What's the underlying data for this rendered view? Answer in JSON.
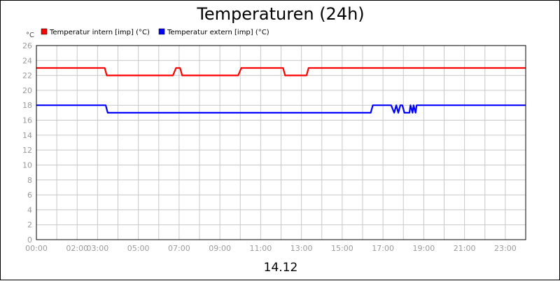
{
  "chart_data": {
    "type": "line",
    "title": "Temperaturen (24h)",
    "unit": "°C",
    "date_label": "14.12",
    "xlim": [
      0,
      24
    ],
    "ylim": [
      0,
      26
    ],
    "y_ticks": [
      0,
      2,
      4,
      6,
      8,
      10,
      12,
      14,
      16,
      18,
      20,
      22,
      24,
      26
    ],
    "x_ticks": [
      {
        "label": "00:00",
        "value": 0
      },
      {
        "label": "02:00",
        "value": 2
      },
      {
        "label": "03:00",
        "value": 3
      },
      {
        "label": "05:00",
        "value": 5
      },
      {
        "label": "07:00",
        "value": 7
      },
      {
        "label": "09:00",
        "value": 9
      },
      {
        "label": "11:00",
        "value": 11
      },
      {
        "label": "13:00",
        "value": 13
      },
      {
        "label": "15:00",
        "value": 15
      },
      {
        "label": "17:00",
        "value": 17
      },
      {
        "label": "19:00",
        "value": 19
      },
      {
        "label": "21:00",
        "value": 21
      },
      {
        "label": "23:00",
        "value": 23
      }
    ],
    "grid": true,
    "legend_position": "top-left",
    "series": [
      {
        "name": "Temperatur intern [imp] (°C)",
        "color": "#ff0000",
        "points": [
          [
            0,
            23
          ],
          [
            3.35,
            23
          ],
          [
            3.45,
            22
          ],
          [
            6.7,
            22
          ],
          [
            6.85,
            23
          ],
          [
            7.05,
            23
          ],
          [
            7.15,
            22
          ],
          [
            9.9,
            22
          ],
          [
            10.05,
            23
          ],
          [
            12.1,
            23
          ],
          [
            12.2,
            22
          ],
          [
            13.25,
            22
          ],
          [
            13.35,
            23
          ],
          [
            24,
            23
          ]
        ]
      },
      {
        "name": "Temperatur extern [imp] (°C)",
        "color": "#0000ff",
        "points": [
          [
            0,
            18
          ],
          [
            3.4,
            18
          ],
          [
            3.5,
            17
          ],
          [
            16.4,
            17
          ],
          [
            16.5,
            18
          ],
          [
            17.4,
            18
          ],
          [
            17.55,
            17
          ],
          [
            17.65,
            18
          ],
          [
            17.75,
            17
          ],
          [
            17.85,
            18
          ],
          [
            17.95,
            18
          ],
          [
            18.05,
            17
          ],
          [
            18.3,
            17
          ],
          [
            18.35,
            18
          ],
          [
            18.45,
            17
          ],
          [
            18.5,
            18
          ],
          [
            18.6,
            17
          ],
          [
            18.65,
            18
          ],
          [
            24,
            18
          ]
        ]
      }
    ]
  }
}
